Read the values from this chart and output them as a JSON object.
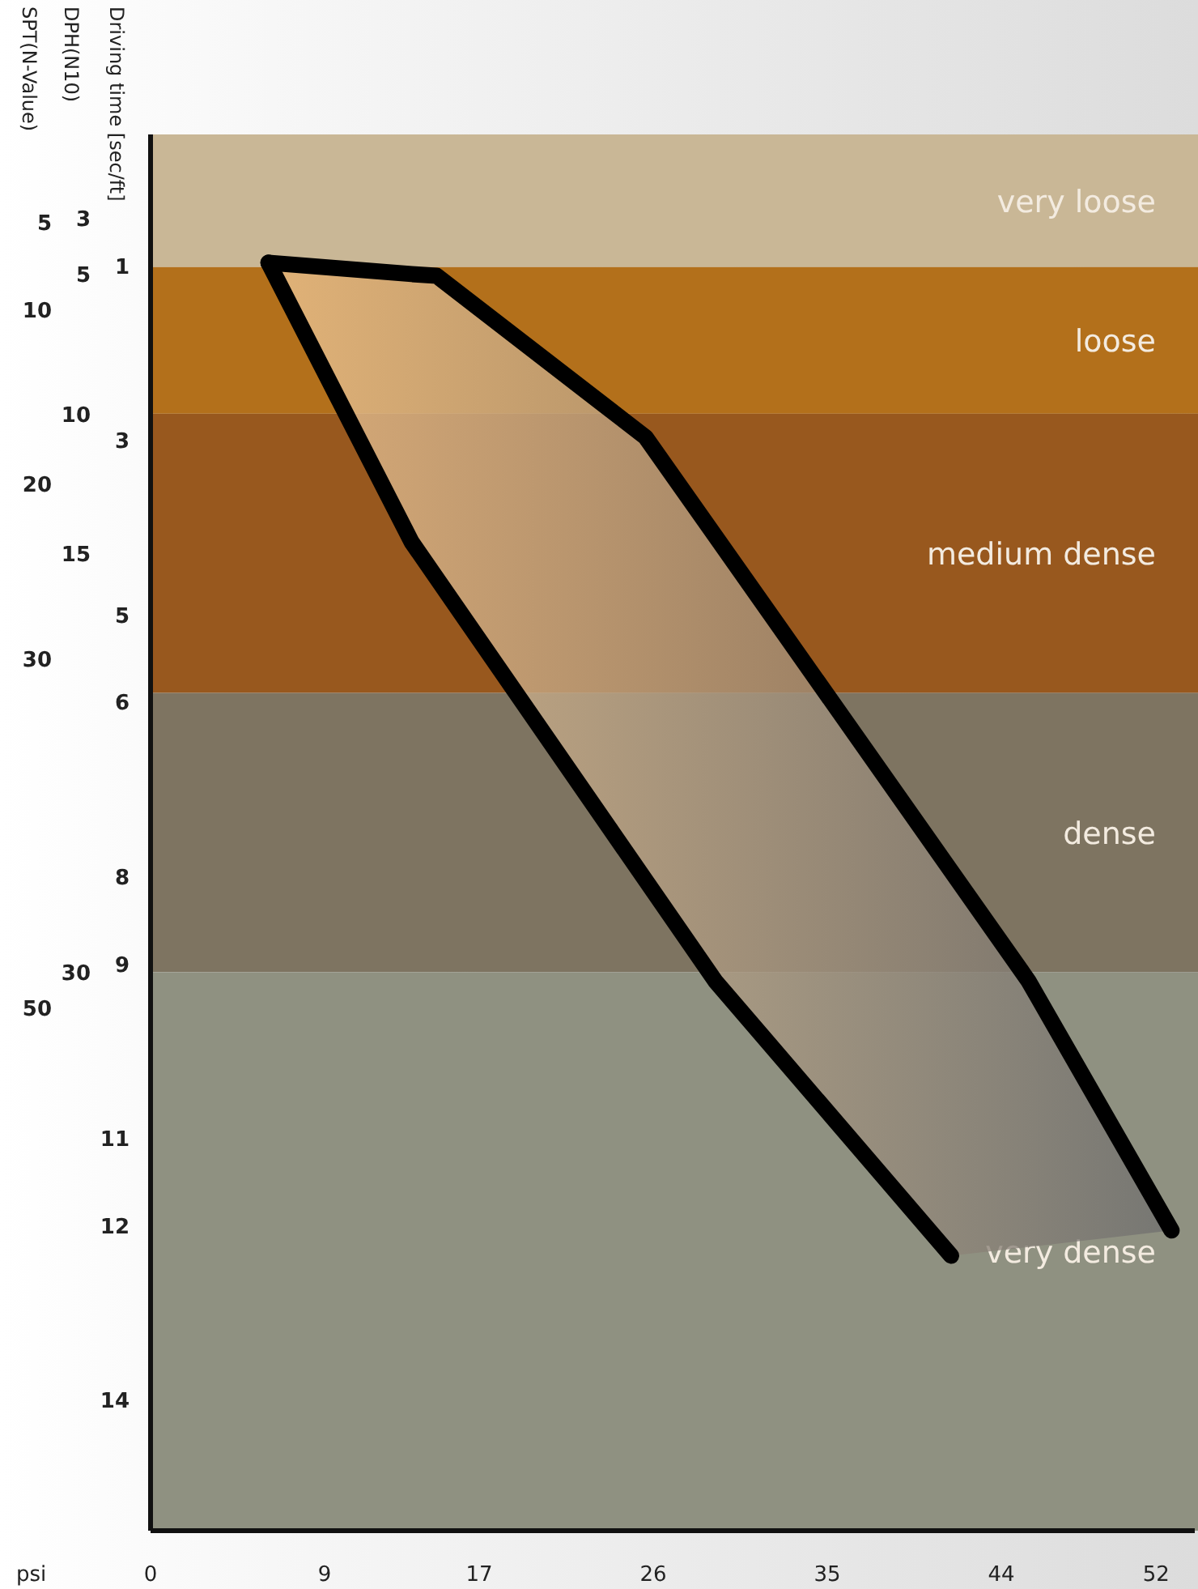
{
  "chart_data": {
    "type": "line",
    "xlabel": "psi",
    "ylabel": "Driving time [sec/ft]",
    "y2label": "SPT(N-Value)",
    "y3label": "DPH(N10)",
    "xlim": [
      0,
      54
    ],
    "xticks": [
      0,
      9,
      17,
      26,
      35,
      44,
      52
    ],
    "ylim": [
      15.5,
      -0.5
    ],
    "yticks": [
      1,
      3,
      5,
      6,
      8,
      9,
      11,
      12,
      14
    ],
    "y2lim": [
      80,
      0
    ],
    "y2ticks": [
      5,
      10,
      20,
      30,
      50
    ],
    "y3lim": [
      50,
      0
    ],
    "y3ticks": [
      3,
      5,
      10,
      15,
      30
    ],
    "grid": false,
    "marker": "none",
    "line_style": "solid",
    "bands": [
      {
        "axis": "y",
        "from": -0.5,
        "to": 1.02,
        "label": "very loose",
        "color": "#c9b796"
      },
      {
        "axis": "y",
        "from": 1.02,
        "to": 2.7,
        "label": "loose",
        "color": "#b3701b"
      },
      {
        "axis": "y",
        "from": 2.7,
        "to": 5.9,
        "label": "medium dense",
        "color": "#98581e"
      },
      {
        "axis": "y",
        "from": 5.9,
        "to": 9.1,
        "label": "dense",
        "color": "#7e7461"
      },
      {
        "axis": "y",
        "from": 9.1,
        "to": 15.5,
        "label": "very dense",
        "color": "#8f9181"
      }
    ],
    "series": [
      {
        "color": "#000000",
        "x": [
          6.1,
          13.5,
          14.8,
          25.6,
          29.2,
          41.4,
          45.4,
          52.8
        ],
        "values": [
          0.97,
          1.1,
          1.12,
          2.97,
          4.1,
          7.94,
          9.2,
          12.06
        ],
        "lower": [
          0.97,
          1.1,
          1.12,
          2.97,
          4.1,
          7.94,
          9.2,
          12.06
        ],
        "upper": [
          0.97,
          4.17,
          4.59,
          8.05,
          9.2,
          12.35,
          12.25,
          12.06
        ]
      },
      {
        "color": "#000000",
        "x": [
          6.1,
          13.5,
          29.2,
          41.4
        ],
        "values": [
          0.97,
          4.17,
          9.2,
          12.35
        ]
      }
    ]
  }
}
